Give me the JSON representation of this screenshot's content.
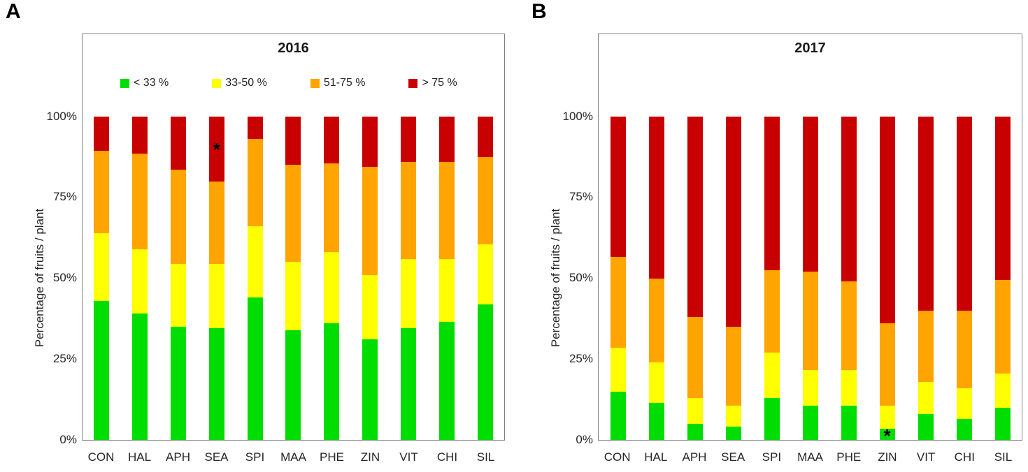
{
  "figure": {
    "panel_a_letter": "A",
    "panel_b_letter": "B"
  },
  "colors": {
    "green": "#00DD00",
    "yellow": "#FFFF00",
    "orange": "#FFA400",
    "red": "#C80000",
    "box_border": "#7F7F7F"
  },
  "chart_data": [
    {
      "type": "bar",
      "stacked": true,
      "title": "2016",
      "ylabel": "Percentage of fruits / plant",
      "ylim": [
        0,
        100
      ],
      "yticks": [
        0,
        25,
        50,
        75,
        100
      ],
      "ytick_labels": [
        "0%",
        "25%",
        "50%",
        "75%",
        "100%"
      ],
      "grid": false,
      "show_legend": true,
      "legend_position": "top-inside",
      "categories": [
        "CON",
        "HAL",
        "APH",
        "SEA",
        "SPI",
        "MAA",
        "PHE",
        "ZIN",
        "VIT",
        "CHI",
        "SIL"
      ],
      "series": [
        {
          "name": "< 33 %",
          "color": "#00DD00",
          "values": [
            43,
            39,
            35,
            34.5,
            44,
            34,
            36,
            31,
            34.5,
            36.5,
            42
          ]
        },
        {
          "name": "33-50 %",
          "color": "#FFFF00",
          "values": [
            21,
            20,
            19.5,
            20,
            22,
            21,
            22,
            20,
            21.5,
            19.5,
            18.5
          ]
        },
        {
          "name": "51-75 %",
          "color": "#FFA400",
          "values": [
            25.5,
            29.5,
            29,
            25.5,
            27,
            30,
            27.5,
            33.5,
            30,
            30,
            27
          ]
        },
        {
          "name": "> 75 %",
          "color": "#C80000",
          "values": [
            10.5,
            11.5,
            16.5,
            20,
            7,
            15,
            14.5,
            15.5,
            14,
            14,
            12.5
          ]
        }
      ],
      "annotations": [
        {
          "text": "*",
          "category": "SEA",
          "y_pct": 90
        }
      ]
    },
    {
      "type": "bar",
      "stacked": true,
      "title": "2017",
      "ylabel": "Percentage of fruits / plant",
      "ylim": [
        0,
        100
      ],
      "yticks": [
        0,
        25,
        50,
        75,
        100
      ],
      "ytick_labels": [
        "0%",
        "25%",
        "50%",
        "75%",
        "100%"
      ],
      "grid": false,
      "show_legend": false,
      "categories": [
        "CON",
        "HAL",
        "APH",
        "SEA",
        "SPI",
        "MAA",
        "PHE",
        "ZIN",
        "VIT",
        "CHI",
        "SIL"
      ],
      "series": [
        {
          "name": "< 33 %",
          "color": "#00DD00",
          "values": [
            15,
            11.5,
            5,
            4,
            13,
            10.5,
            10.5,
            3.5,
            8,
            6.5,
            10
          ]
        },
        {
          "name": "33-50 %",
          "color": "#FFFF00",
          "values": [
            13.5,
            12.5,
            8,
            6.5,
            14,
            11,
            11,
            7,
            10,
            9.5,
            10.5
          ]
        },
        {
          "name": "51-75 %",
          "color": "#FFA400",
          "values": [
            28,
            26,
            25,
            24.5,
            25.5,
            30.5,
            27.5,
            25.5,
            22,
            24,
            29
          ]
        },
        {
          "name": "> 75 %",
          "color": "#C80000",
          "values": [
            43.5,
            50,
            62,
            65,
            47.5,
            48,
            51,
            64,
            60,
            60,
            50.5
          ]
        }
      ],
      "annotations": [
        {
          "text": "*",
          "category": "ZIN",
          "y_pct": 1.5
        }
      ]
    }
  ]
}
